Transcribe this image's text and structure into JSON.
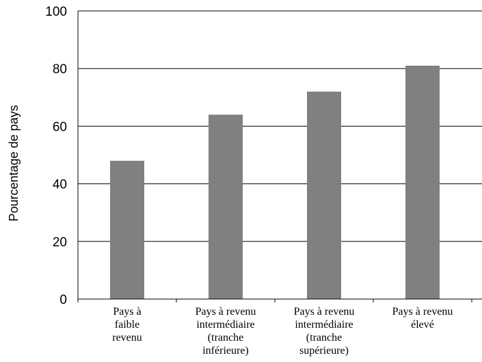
{
  "chart_data": {
    "type": "bar",
    "title": "",
    "xlabel": "",
    "ylabel": "Pourcentage de pays",
    "ylim": [
      0,
      100
    ],
    "yticks": [
      0,
      20,
      40,
      60,
      80,
      100
    ],
    "grid": true,
    "bar_color": "#808080",
    "categories": [
      "Pays à faible revenu",
      "Pays à revenu intermédiaire (tranche inférieure)",
      "Pays à revenu intermédiaire (tranche supérieure)",
      "Pays à revenu élevé"
    ],
    "category_lines": [
      [
        "Pays à",
        "faible",
        "revenu"
      ],
      [
        "Pays à revenu",
        "intermédiaire",
        "(tranche",
        "inférieure)"
      ],
      [
        "Pays à revenu",
        "intermédiaire",
        "(tranche",
        "supérieure)"
      ],
      [
        "Pays à revenu",
        "élevé"
      ]
    ],
    "values": [
      48,
      64,
      72,
      81
    ]
  }
}
